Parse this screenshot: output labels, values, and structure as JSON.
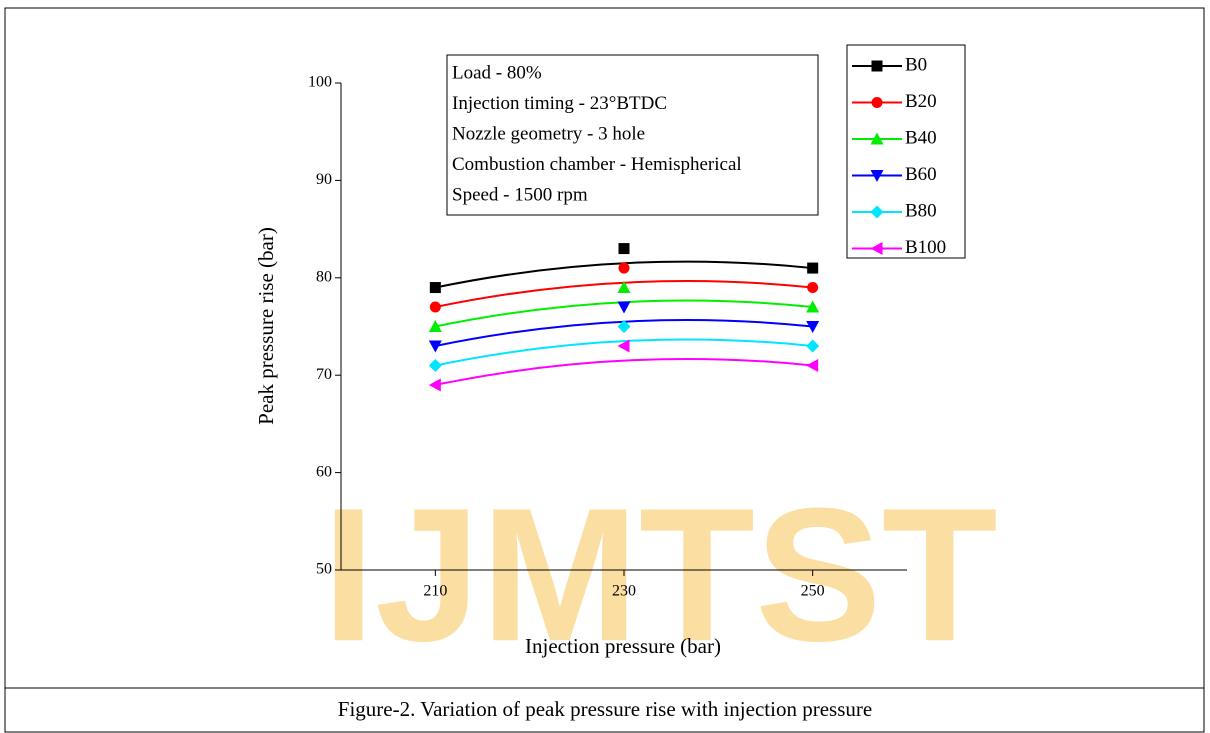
{
  "chart_data": {
    "type": "line",
    "watermark": "IJMTST",
    "caption": "Figure-2. Variation of peak pressure rise with injection pressure",
    "x_label": "Injection pressure (bar)",
    "y_label": "Peak pressure rise (bar)",
    "annotations": [
      "Load - 80%",
      "Injection timing - 23°BTDC",
      "Nozzle geometry - 3 hole",
      "Combustion chamber - Hemispherical",
      "Speed - 1500 rpm"
    ],
    "x": [
      210,
      230,
      250
    ],
    "xlim": [
      200,
      260
    ],
    "xticks": [
      210,
      230,
      250
    ],
    "ylim": [
      50,
      100
    ],
    "yticks": [
      50,
      60,
      70,
      80,
      90,
      100
    ],
    "legend": "top-right",
    "series": [
      {
        "name": "B0",
        "color": "#000000",
        "marker": "square",
        "values": [
          79,
          83,
          81
        ]
      },
      {
        "name": "B20",
        "color": "#ff0000",
        "marker": "circle",
        "values": [
          77,
          81,
          79
        ]
      },
      {
        "name": "B40",
        "color": "#00ee00",
        "marker": "triangle-up",
        "values": [
          75,
          79,
          77
        ]
      },
      {
        "name": "B60",
        "color": "#0000ff",
        "marker": "triangle-down",
        "values": [
          73,
          77,
          75
        ]
      },
      {
        "name": "B80",
        "color": "#00e5ff",
        "marker": "diamond",
        "values": [
          71,
          75,
          73
        ]
      },
      {
        "name": "B100",
        "color": "#ff00ff",
        "marker": "triangle-left",
        "values": [
          69,
          73,
          71
        ]
      }
    ]
  }
}
